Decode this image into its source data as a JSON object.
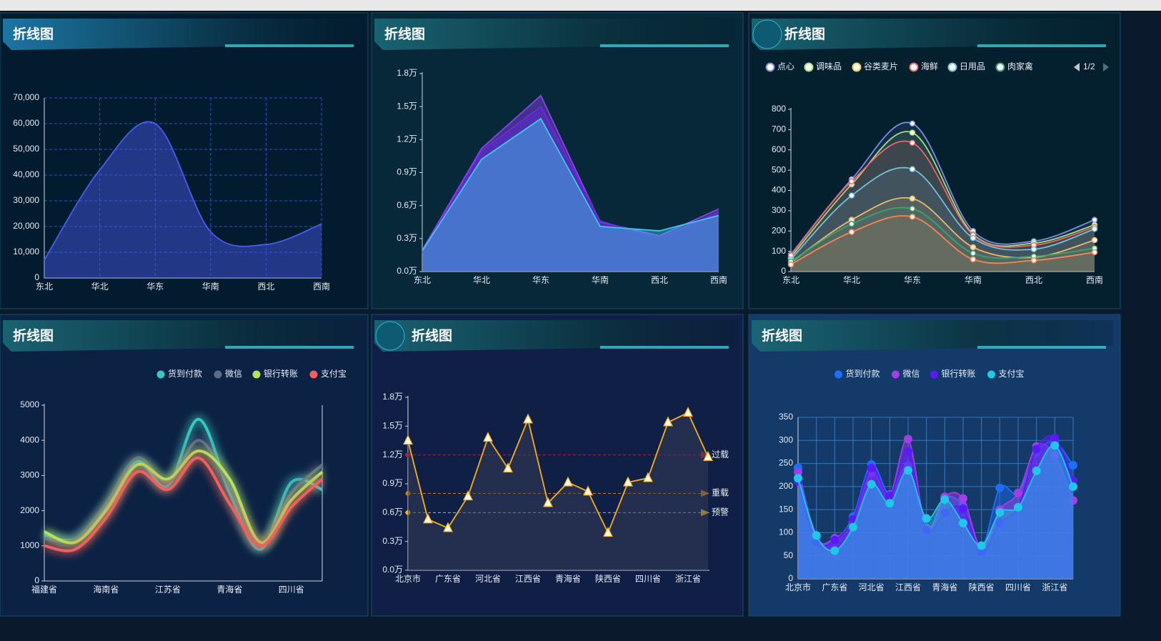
{
  "chart_data": [
    {
      "type": "line",
      "title": "折线图",
      "smooth": true,
      "area": true,
      "grid": true,
      "categories": [
        "东北",
        "华北",
        "华东",
        "华南",
        "西北",
        "西南"
      ],
      "series": [
        {
          "color": "#4a5cf0",
          "values": [
            7000,
            42000,
            60000,
            18000,
            13000,
            21000
          ]
        }
      ],
      "ylim": [
        0,
        70000
      ],
      "yticks": [
        0,
        {
          "value": 10000,
          "label": "10,000"
        },
        {
          "value": 20000,
          "label": "20,000"
        },
        {
          "value": 30000,
          "label": "30,000"
        },
        {
          "value": 40000,
          "label": "40,000"
        },
        {
          "value": 50000,
          "label": "50,000"
        },
        {
          "value": 60000,
          "label": "60,000"
        },
        {
          "value": 70000,
          "label": "70,000"
        }
      ]
    },
    {
      "type": "line",
      "title": "折线图",
      "smooth": false,
      "area": true,
      "grid": false,
      "categories": [
        "东北",
        "华北",
        "华东",
        "华南",
        "西北",
        "西南"
      ],
      "series": [
        {
          "color": "#8b3ff0",
          "values": [
            1950,
            11200,
            16000,
            4500,
            3250,
            5700
          ]
        },
        {
          "color": "#6a2ae0",
          "values": [
            1700,
            11000,
            15000,
            4600,
            3000,
            5400
          ]
        },
        {
          "color": "#3ac8f0",
          "values": [
            1900,
            10200,
            13900,
            4100,
            3700,
            5100
          ]
        }
      ],
      "ylim": [
        0,
        18000
      ],
      "yticks": [
        {
          "value": 0,
          "label": "0.0万"
        },
        {
          "value": 3000,
          "label": "0.3万"
        },
        {
          "value": 6000,
          "label": "0.6万"
        },
        {
          "value": 9000,
          "label": "0.9万"
        },
        {
          "value": 12000,
          "label": "1.2万"
        },
        {
          "value": 15000,
          "label": "1.5万"
        },
        {
          "value": 18000,
          "label": "1.8万"
        }
      ]
    },
    {
      "type": "line",
      "title": "折线图",
      "smooth": true,
      "area": true,
      "grid": false,
      "legend": "top-left",
      "legend_page": "1/2",
      "categories": [
        "东北",
        "华北",
        "华东",
        "华南",
        "西北",
        "西南"
      ],
      "series": [
        {
          "name": "点心",
          "color": "#7b8ce0",
          "values": [
            85,
            455,
            730,
            200,
            150,
            255
          ]
        },
        {
          "name": "调味品",
          "color": "#a6e07a",
          "values": [
            70,
            430,
            685,
            185,
            140,
            230
          ]
        },
        {
          "name": "谷类麦片",
          "color": "#fac858",
          "values": [
            45,
            255,
            360,
            120,
            70,
            155
          ]
        },
        {
          "name": "海鲜",
          "color": "#ee6666",
          "values": [
            80,
            445,
            635,
            180,
            130,
            220
          ]
        },
        {
          "name": "日用品",
          "color": "#73c0de",
          "values": [
            60,
            375,
            505,
            165,
            110,
            210
          ]
        },
        {
          "name": "肉家禽",
          "color": "#3ba272",
          "values": [
            50,
            235,
            310,
            90,
            75,
            115
          ]
        },
        {
          "color": "#fc8452",
          "values": [
            35,
            195,
            270,
            60,
            55,
            95
          ]
        }
      ],
      "ylim": [
        0,
        800
      ],
      "yticks": [
        0,
        100,
        200,
        300,
        400,
        500,
        600,
        700,
        800
      ]
    },
    {
      "type": "line",
      "title": "折线图",
      "smooth": true,
      "area": false,
      "grid": false,
      "legend": "top-right",
      "categories": [
        "福建省",
        null,
        "海南省",
        null,
        "江苏省",
        null,
        "青海省",
        null,
        "四川省",
        null
      ],
      "series": [
        {
          "name": "货到付款",
          "color": "#37c9c0",
          "values": [
            1300,
            1200,
            2100,
            3400,
            2700,
            4600,
            2500,
            900,
            2800,
            2600
          ]
        },
        {
          "name": "微信",
          "color": "#5d6b85",
          "values": [
            1200,
            1200,
            2200,
            3500,
            2800,
            4000,
            2700,
            1000,
            2500,
            3300
          ]
        },
        {
          "name": "银行转账",
          "color": "#b6e25a",
          "values": [
            1400,
            1100,
            2000,
            3300,
            2900,
            3700,
            2900,
            1100,
            2300,
            3100
          ]
        },
        {
          "name": "支付宝",
          "color": "#f25f5c",
          "values": [
            1000,
            900,
            1800,
            3100,
            2600,
            3500,
            2200,
            1000,
            2100,
            2900
          ]
        }
      ],
      "ylim": [
        0,
        5000
      ],
      "yticks": [
        0,
        1000,
        2000,
        3000,
        4000,
        5000
      ]
    },
    {
      "type": "line",
      "title": "折线图",
      "smooth": false,
      "area": true,
      "grid": false,
      "categories": [
        "北京市",
        null,
        "广东省",
        null,
        "河北省",
        null,
        "江西省",
        null,
        "青海省",
        null,
        "陕西省",
        null,
        "四川省",
        null,
        "浙江省",
        null
      ],
      "series": [
        {
          "color": "#f5b11c",
          "values": [
            13500,
            5300,
            4400,
            7700,
            13800,
            10600,
            15700,
            7000,
            9150,
            8200,
            3900,
            9150,
            9600,
            15400,
            16400,
            11800
          ]
        }
      ],
      "mark_lines": [
        {
          "label": "过载",
          "value": 12000,
          "color": "#b0203a"
        },
        {
          "label": "重载",
          "value": 8000,
          "color": "#c87b2a"
        },
        {
          "label": "预警",
          "value": 6000,
          "color": "#e5b52a"
        }
      ],
      "ylim": [
        0,
        18000
      ],
      "yticks": [
        {
          "value": 0,
          "label": "0.0万"
        },
        {
          "value": 3000,
          "label": "0.3万"
        },
        {
          "value": 6000,
          "label": "0.6万"
        },
        {
          "value": 9000,
          "label": "0.9万"
        },
        {
          "value": 12000,
          "label": "1.2万"
        },
        {
          "value": 15000,
          "label": "1.5万"
        },
        {
          "value": 18000,
          "label": "1.8万"
        }
      ]
    },
    {
      "type": "line",
      "title": "折线图",
      "smooth": true,
      "area": true,
      "grid": true,
      "legend": "top-center",
      "categories": [
        "北京市",
        null,
        "广东省",
        null,
        "河北省",
        null,
        "江西省",
        null,
        "青海省",
        null,
        "陕西省",
        null,
        "四川省",
        null,
        "浙江省",
        null
      ],
      "series": [
        {
          "name": "货到付款",
          "color": "#1e6fff",
          "values": [
            241,
            91,
            84,
            135,
            248,
            183,
            245,
            108,
            175,
            158,
            68,
            197,
            186,
            274,
            296,
            246
          ]
        },
        {
          "name": "微信",
          "color": "#a23de8",
          "values": [
            231,
            88,
            88,
            126,
            230,
            182,
            303,
            110,
            178,
            174,
            67,
            150,
            186,
            287,
            268,
            170
          ]
        },
        {
          "name": "银行转账",
          "color": "#5a1aff",
          "values": [
            211,
            80,
            84,
            129,
            240,
            180,
            276,
            106,
            143,
            152,
            58,
            121,
            155,
            281,
            305,
            213
          ]
        },
        {
          "name": "支付宝",
          "color": "#1ec8e8",
          "values": [
            218,
            94,
            61,
            112,
            205,
            164,
            235,
            131,
            172,
            121,
            72,
            144,
            155,
            234,
            289,
            200
          ]
        }
      ],
      "ylim": [
        0,
        350
      ],
      "yticks": [
        0,
        50,
        100,
        150,
        200,
        250,
        300,
        350
      ]
    }
  ]
}
